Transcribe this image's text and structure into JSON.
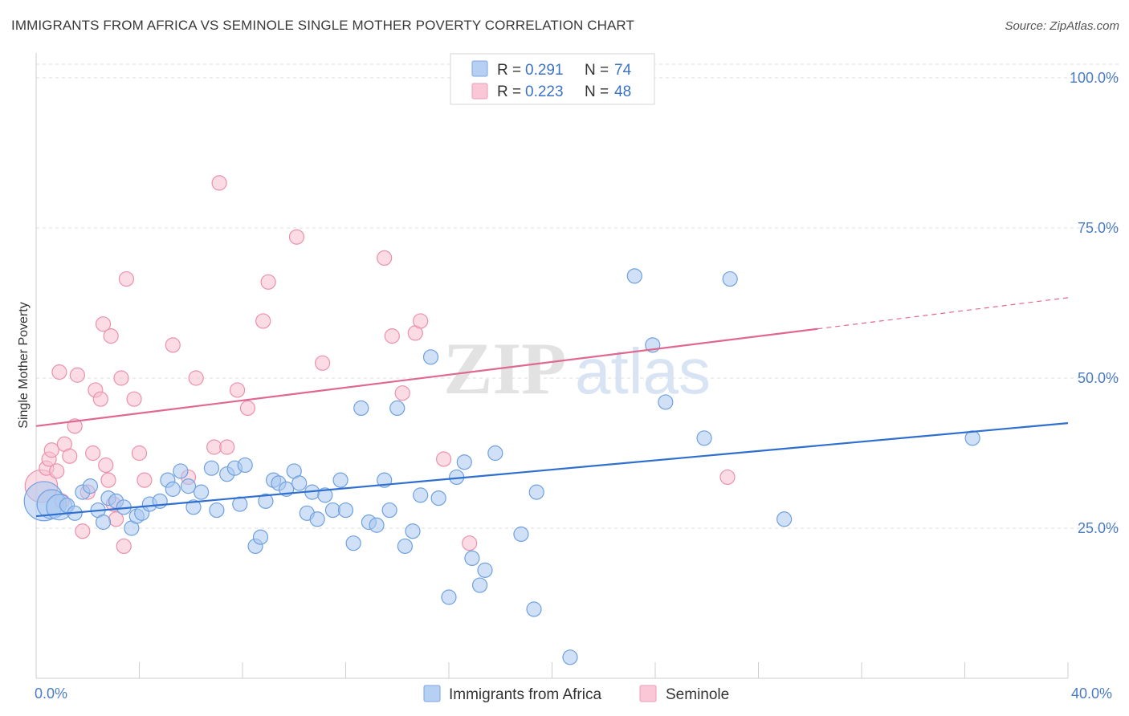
{
  "header": {
    "title": "IMMIGRANTS FROM AFRICA VS SEMINOLE SINGLE MOTHER POVERTY CORRELATION CHART",
    "source": "Source: ZipAtlas.com"
  },
  "watermark": {
    "zip": "ZIP",
    "atlas": "atlas"
  },
  "legend": {
    "r_label": "R =",
    "n_label": "N =",
    "entries": [
      {
        "r": "0.291",
        "n": "74",
        "color": "#8fb8ee"
      },
      {
        "r": "0.223",
        "n": "48",
        "color": "#f4a8c0"
      }
    ]
  },
  "colors": {
    "blue_fill": "#a9c8f0",
    "blue_stroke": "#6fa0e0",
    "blue_line": "#2f6fd0",
    "pink_fill": "#f7bfd0",
    "pink_stroke": "#ec90ae",
    "pink_line": "#e06890",
    "grid": "#dcdcdc",
    "tick_text": "#4a7cc4"
  },
  "chart_data": {
    "type": "scatter",
    "title": "IMMIGRANTS FROM AFRICA VS SEMINOLE SINGLE MOTHER POVERTY CORRELATION CHART",
    "xlabel": "",
    "ylabel": "Single Mother Poverty",
    "xlim": [
      0,
      40
    ],
    "ylim": [
      0,
      100
    ],
    "x_tick_labels": [
      "0.0%",
      "40.0%"
    ],
    "y_ticks": [
      25,
      50,
      75,
      100
    ],
    "y_tick_labels": [
      "25.0%",
      "50.0%",
      "75.0%",
      "100.0%"
    ],
    "grid": true,
    "legend_position": "top-center",
    "series": [
      {
        "name": "Immigrants from Africa",
        "r": 0.291,
        "n": 74,
        "trend": {
          "x0": 0,
          "y0": 27.0,
          "x1": 40,
          "y1": 42.5,
          "dashed_to": 40
        },
        "points": [
          [
            0.3,
            29.5,
            2.2
          ],
          [
            0.6,
            29.0,
            1.3
          ],
          [
            0.9,
            28.5,
            1.0
          ],
          [
            1.2,
            28.8,
            0.8
          ],
          [
            1.5,
            27.5,
            0.6
          ],
          [
            1.8,
            31.0,
            0.7
          ],
          [
            2.1,
            32.0,
            0.6
          ],
          [
            2.4,
            28.0,
            0.5
          ],
          [
            2.6,
            26.0,
            0.5
          ],
          [
            2.8,
            30.0,
            0.5
          ],
          [
            3.1,
            29.5,
            0.5
          ],
          [
            3.4,
            28.5,
            0.5
          ],
          [
            3.7,
            25.0,
            0.5
          ],
          [
            3.9,
            27.0,
            0.5
          ],
          [
            4.1,
            27.5,
            0.5
          ],
          [
            4.4,
            29.0,
            0.5
          ],
          [
            4.8,
            29.5,
            0.5
          ],
          [
            5.1,
            33.0,
            0.5
          ],
          [
            5.3,
            31.5,
            0.5
          ],
          [
            5.6,
            34.5,
            0.5
          ],
          [
            5.9,
            32.0,
            0.5
          ],
          [
            6.1,
            28.5,
            0.5
          ],
          [
            6.4,
            31.0,
            0.5
          ],
          [
            6.8,
            35.0,
            0.5
          ],
          [
            7.0,
            28.0,
            0.5
          ],
          [
            7.4,
            34.0,
            0.5
          ],
          [
            7.7,
            35.0,
            0.5
          ],
          [
            7.9,
            29.0,
            0.5
          ],
          [
            8.1,
            35.5,
            0.5
          ],
          [
            8.5,
            22.0,
            0.5
          ],
          [
            8.7,
            23.5,
            0.5
          ],
          [
            8.9,
            29.5,
            0.5
          ],
          [
            9.2,
            33.0,
            0.5
          ],
          [
            9.4,
            32.5,
            0.5
          ],
          [
            9.7,
            31.5,
            0.5
          ],
          [
            10.0,
            34.5,
            0.5
          ],
          [
            10.2,
            32.5,
            0.5
          ],
          [
            10.5,
            27.5,
            0.5
          ],
          [
            10.7,
            31.0,
            0.5
          ],
          [
            10.9,
            26.5,
            0.5
          ],
          [
            11.2,
            30.5,
            0.5
          ],
          [
            11.5,
            28.0,
            0.5
          ],
          [
            11.8,
            33.0,
            0.5
          ],
          [
            12.0,
            28.0,
            0.5
          ],
          [
            12.3,
            22.5,
            0.5
          ],
          [
            12.6,
            45.0,
            0.5
          ],
          [
            12.9,
            26.0,
            0.5
          ],
          [
            13.2,
            25.5,
            0.5
          ],
          [
            13.5,
            33.0,
            0.5
          ],
          [
            13.7,
            28.0,
            0.5
          ],
          [
            14.0,
            45.0,
            0.5
          ],
          [
            14.3,
            22.0,
            0.5
          ],
          [
            14.6,
            24.5,
            0.5
          ],
          [
            14.9,
            30.5,
            0.5
          ],
          [
            15.3,
            53.5,
            0.5
          ],
          [
            15.6,
            30.0,
            0.5
          ],
          [
            16.0,
            13.5,
            0.5
          ],
          [
            16.3,
            33.5,
            0.5
          ],
          [
            16.6,
            36.0,
            0.5
          ],
          [
            16.9,
            20.0,
            0.5
          ],
          [
            17.2,
            15.5,
            0.5
          ],
          [
            17.4,
            18.0,
            0.5
          ],
          [
            17.8,
            37.5,
            0.5
          ],
          [
            18.8,
            24.0,
            0.5
          ],
          [
            19.4,
            31.0,
            0.5
          ],
          [
            19.3,
            11.5,
            0.5
          ],
          [
            20.7,
            3.5,
            0.5
          ],
          [
            23.2,
            67.0,
            0.5
          ],
          [
            23.9,
            55.5,
            0.5
          ],
          [
            24.4,
            46.0,
            0.5
          ],
          [
            25.9,
            40.0,
            0.5
          ],
          [
            26.9,
            66.5,
            0.5
          ],
          [
            29.0,
            26.5,
            0.5
          ],
          [
            36.3,
            40.0,
            0.5
          ]
        ]
      },
      {
        "name": "Seminole",
        "r": 0.223,
        "n": 48,
        "trend": {
          "x0": 0,
          "y0": 42.0,
          "x1": 30.3,
          "y1": 58.2,
          "dashed_to": 40
        },
        "points": [
          [
            0.2,
            32.0,
            1.6
          ],
          [
            0.4,
            35.0,
            0.5
          ],
          [
            0.5,
            36.5,
            0.5
          ],
          [
            0.6,
            38.0,
            0.5
          ],
          [
            0.8,
            34.5,
            0.5
          ],
          [
            0.9,
            51.0,
            0.5
          ],
          [
            1.1,
            39.0,
            0.5
          ],
          [
            1.3,
            37.0,
            0.5
          ],
          [
            1.5,
            42.0,
            0.5
          ],
          [
            1.6,
            50.5,
            0.5
          ],
          [
            1.8,
            24.5,
            0.5
          ],
          [
            2.0,
            31.0,
            0.5
          ],
          [
            2.2,
            37.5,
            0.5
          ],
          [
            2.3,
            48.0,
            0.5
          ],
          [
            2.5,
            46.5,
            0.5
          ],
          [
            2.6,
            59.0,
            0.5
          ],
          [
            2.7,
            35.5,
            0.5
          ],
          [
            2.9,
            57.0,
            0.5
          ],
          [
            3.0,
            29.0,
            0.5
          ],
          [
            3.1,
            26.5,
            0.5
          ],
          [
            3.3,
            50.0,
            0.5
          ],
          [
            3.4,
            22.0,
            0.5
          ],
          [
            3.5,
            66.5,
            0.5
          ],
          [
            3.8,
            46.5,
            0.5
          ],
          [
            4.0,
            37.5,
            0.5
          ],
          [
            4.2,
            33.0,
            0.5
          ],
          [
            5.3,
            55.5,
            0.5
          ],
          [
            5.9,
            33.5,
            0.5
          ],
          [
            6.2,
            50.0,
            0.5
          ],
          [
            6.9,
            38.5,
            0.5
          ],
          [
            7.1,
            82.5,
            0.5
          ],
          [
            7.4,
            38.5,
            0.5
          ],
          [
            7.8,
            48.0,
            0.5
          ],
          [
            8.2,
            45.0,
            0.5
          ],
          [
            8.8,
            59.5,
            0.5
          ],
          [
            9.0,
            66.0,
            0.5
          ],
          [
            10.1,
            73.5,
            0.5
          ],
          [
            11.1,
            52.5,
            0.5
          ],
          [
            13.5,
            70.0,
            0.5
          ],
          [
            13.8,
            57.0,
            0.5
          ],
          [
            14.2,
            47.5,
            0.5
          ],
          [
            14.7,
            57.5,
            0.5
          ],
          [
            14.9,
            59.5,
            0.5
          ],
          [
            15.8,
            36.5,
            0.5
          ],
          [
            16.8,
            22.5,
            0.5
          ],
          [
            26.8,
            33.5,
            0.5
          ],
          [
            1.0,
            29.5,
            0.5
          ],
          [
            2.8,
            33.0,
            0.5
          ]
        ]
      }
    ]
  }
}
